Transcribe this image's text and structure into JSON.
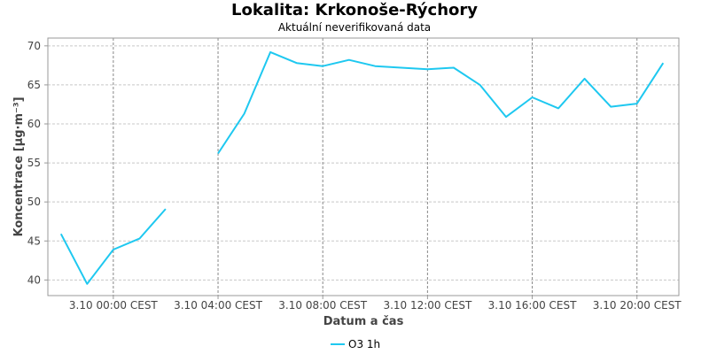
{
  "chart_data": {
    "type": "line",
    "title": "Lokalita: Krkonoše-Rýchory",
    "subtitle": "Aktuální neverifikovaná data",
    "xlabel": "Datum a čas",
    "ylabel": "Koncentrace [µg·m⁻³]",
    "ylim": [
      38,
      71
    ],
    "yticks": [
      40,
      45,
      50,
      55,
      60,
      65,
      70
    ],
    "x_start": "3.10 00:00 CEST",
    "x_step_hours": 1,
    "xlim_hours": [
      -2.5,
      21.6
    ],
    "xticks": [
      {
        "hour": 0,
        "label": "3.10 00:00 CEST"
      },
      {
        "hour": 4,
        "label": "3.10 04:00 CEST"
      },
      {
        "hour": 8,
        "label": "3.10 08:00 CEST"
      },
      {
        "hour": 12,
        "label": "3.10 12:00 CEST"
      },
      {
        "hour": 16,
        "label": "3.10 16:00 CEST"
      },
      {
        "hour": 20,
        "label": "3.10 20:00 CEST"
      }
    ],
    "grid": true,
    "legend_position": "bottom",
    "series": [
      {
        "name": "O3 1h",
        "color": "#1ec8f0",
        "hours": [
          -2,
          -1,
          0,
          1,
          2,
          3,
          4,
          5,
          6,
          7,
          8,
          9,
          10,
          11,
          12,
          13,
          14,
          15,
          16,
          17,
          18,
          19,
          20,
          21
        ],
        "values": [
          45.9,
          39.5,
          43.9,
          45.3,
          49.1,
          null,
          56.2,
          61.3,
          69.2,
          67.8,
          67.4,
          68.2,
          67.4,
          67.2,
          67.0,
          67.2,
          65.0,
          60.9,
          63.4,
          62.0,
          65.8,
          62.2,
          62.6,
          67.8
        ]
      }
    ]
  }
}
